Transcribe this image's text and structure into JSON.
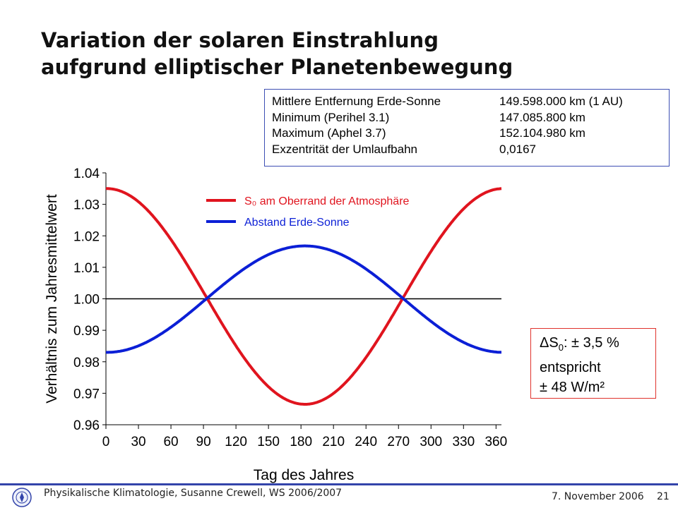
{
  "slide": {
    "title_line1": "Variation der solaren Einstrahlung",
    "title_line2": "aufgrund elliptischer Planetenbewegung"
  },
  "info": [
    {
      "label": "Mittlere Entfernung Erde-Sonne",
      "value": "149.598.000 km (1 AU)"
    },
    {
      "label": "Minimum (Perihel 3.1)",
      "value": "147.085.800 km"
    },
    {
      "label": "Maximum (Aphel 3.7)",
      "value": "152.104.980 km"
    },
    {
      "label": "Exzentrität der Umlaufbahn",
      "value": "0,0167"
    }
  ],
  "delta": {
    "symbol": "ΔS",
    "sub": "0",
    "line1_rest": ":  ± 3,5 %",
    "line2": "entspricht",
    "line3": "± 48 W/m²"
  },
  "footer": {
    "text": "Physikalische Klimatologie, Susanne Crewell,  WS 2006/2007",
    "date": "7. November 2006",
    "page": "21"
  },
  "colors": {
    "s0": "#e0141e",
    "distance": "#0b1fd6",
    "footer_line": "#3344aa"
  },
  "chart_data": {
    "type": "line",
    "xlabel": "Tag des Jahres",
    "ylabel": "Verhältnis zum Jahresmittelwert",
    "xlim": [
      0,
      365
    ],
    "ylim": [
      0.96,
      1.04
    ],
    "xticks": [
      0,
      30,
      60,
      90,
      120,
      150,
      180,
      210,
      240,
      270,
      300,
      330,
      360
    ],
    "yticks": [
      "0.96",
      "0.97",
      "0.98",
      "0.99",
      "1.00",
      "1.01",
      "1.02",
      "1.03",
      "1.04"
    ],
    "reference_line": 1.0,
    "legend": "top-center",
    "series": [
      {
        "name": "S₀ am Oberrand der Atmosphäre",
        "color": "#e0141e",
        "x": [
          0,
          30,
          60,
          90,
          120,
          150,
          184,
          210,
          240,
          270,
          300,
          330,
          365
        ],
        "y": [
          1.035,
          1.031,
          1.0195,
          1.0015,
          0.9835,
          0.9705,
          0.9665,
          0.9705,
          0.9835,
          1.0015,
          1.0195,
          1.031,
          1.035
        ]
      },
      {
        "name": "Abstand Erde-Sonne",
        "color": "#0b1fd6",
        "x": [
          0,
          30,
          60,
          90,
          120,
          150,
          184,
          210,
          240,
          270,
          300,
          330,
          365
        ],
        "y": [
          0.983,
          0.985,
          0.9905,
          0.9995,
          1.008,
          1.0145,
          1.0168,
          1.0145,
          1.008,
          0.9995,
          0.9905,
          0.985,
          0.983
        ]
      }
    ]
  }
}
